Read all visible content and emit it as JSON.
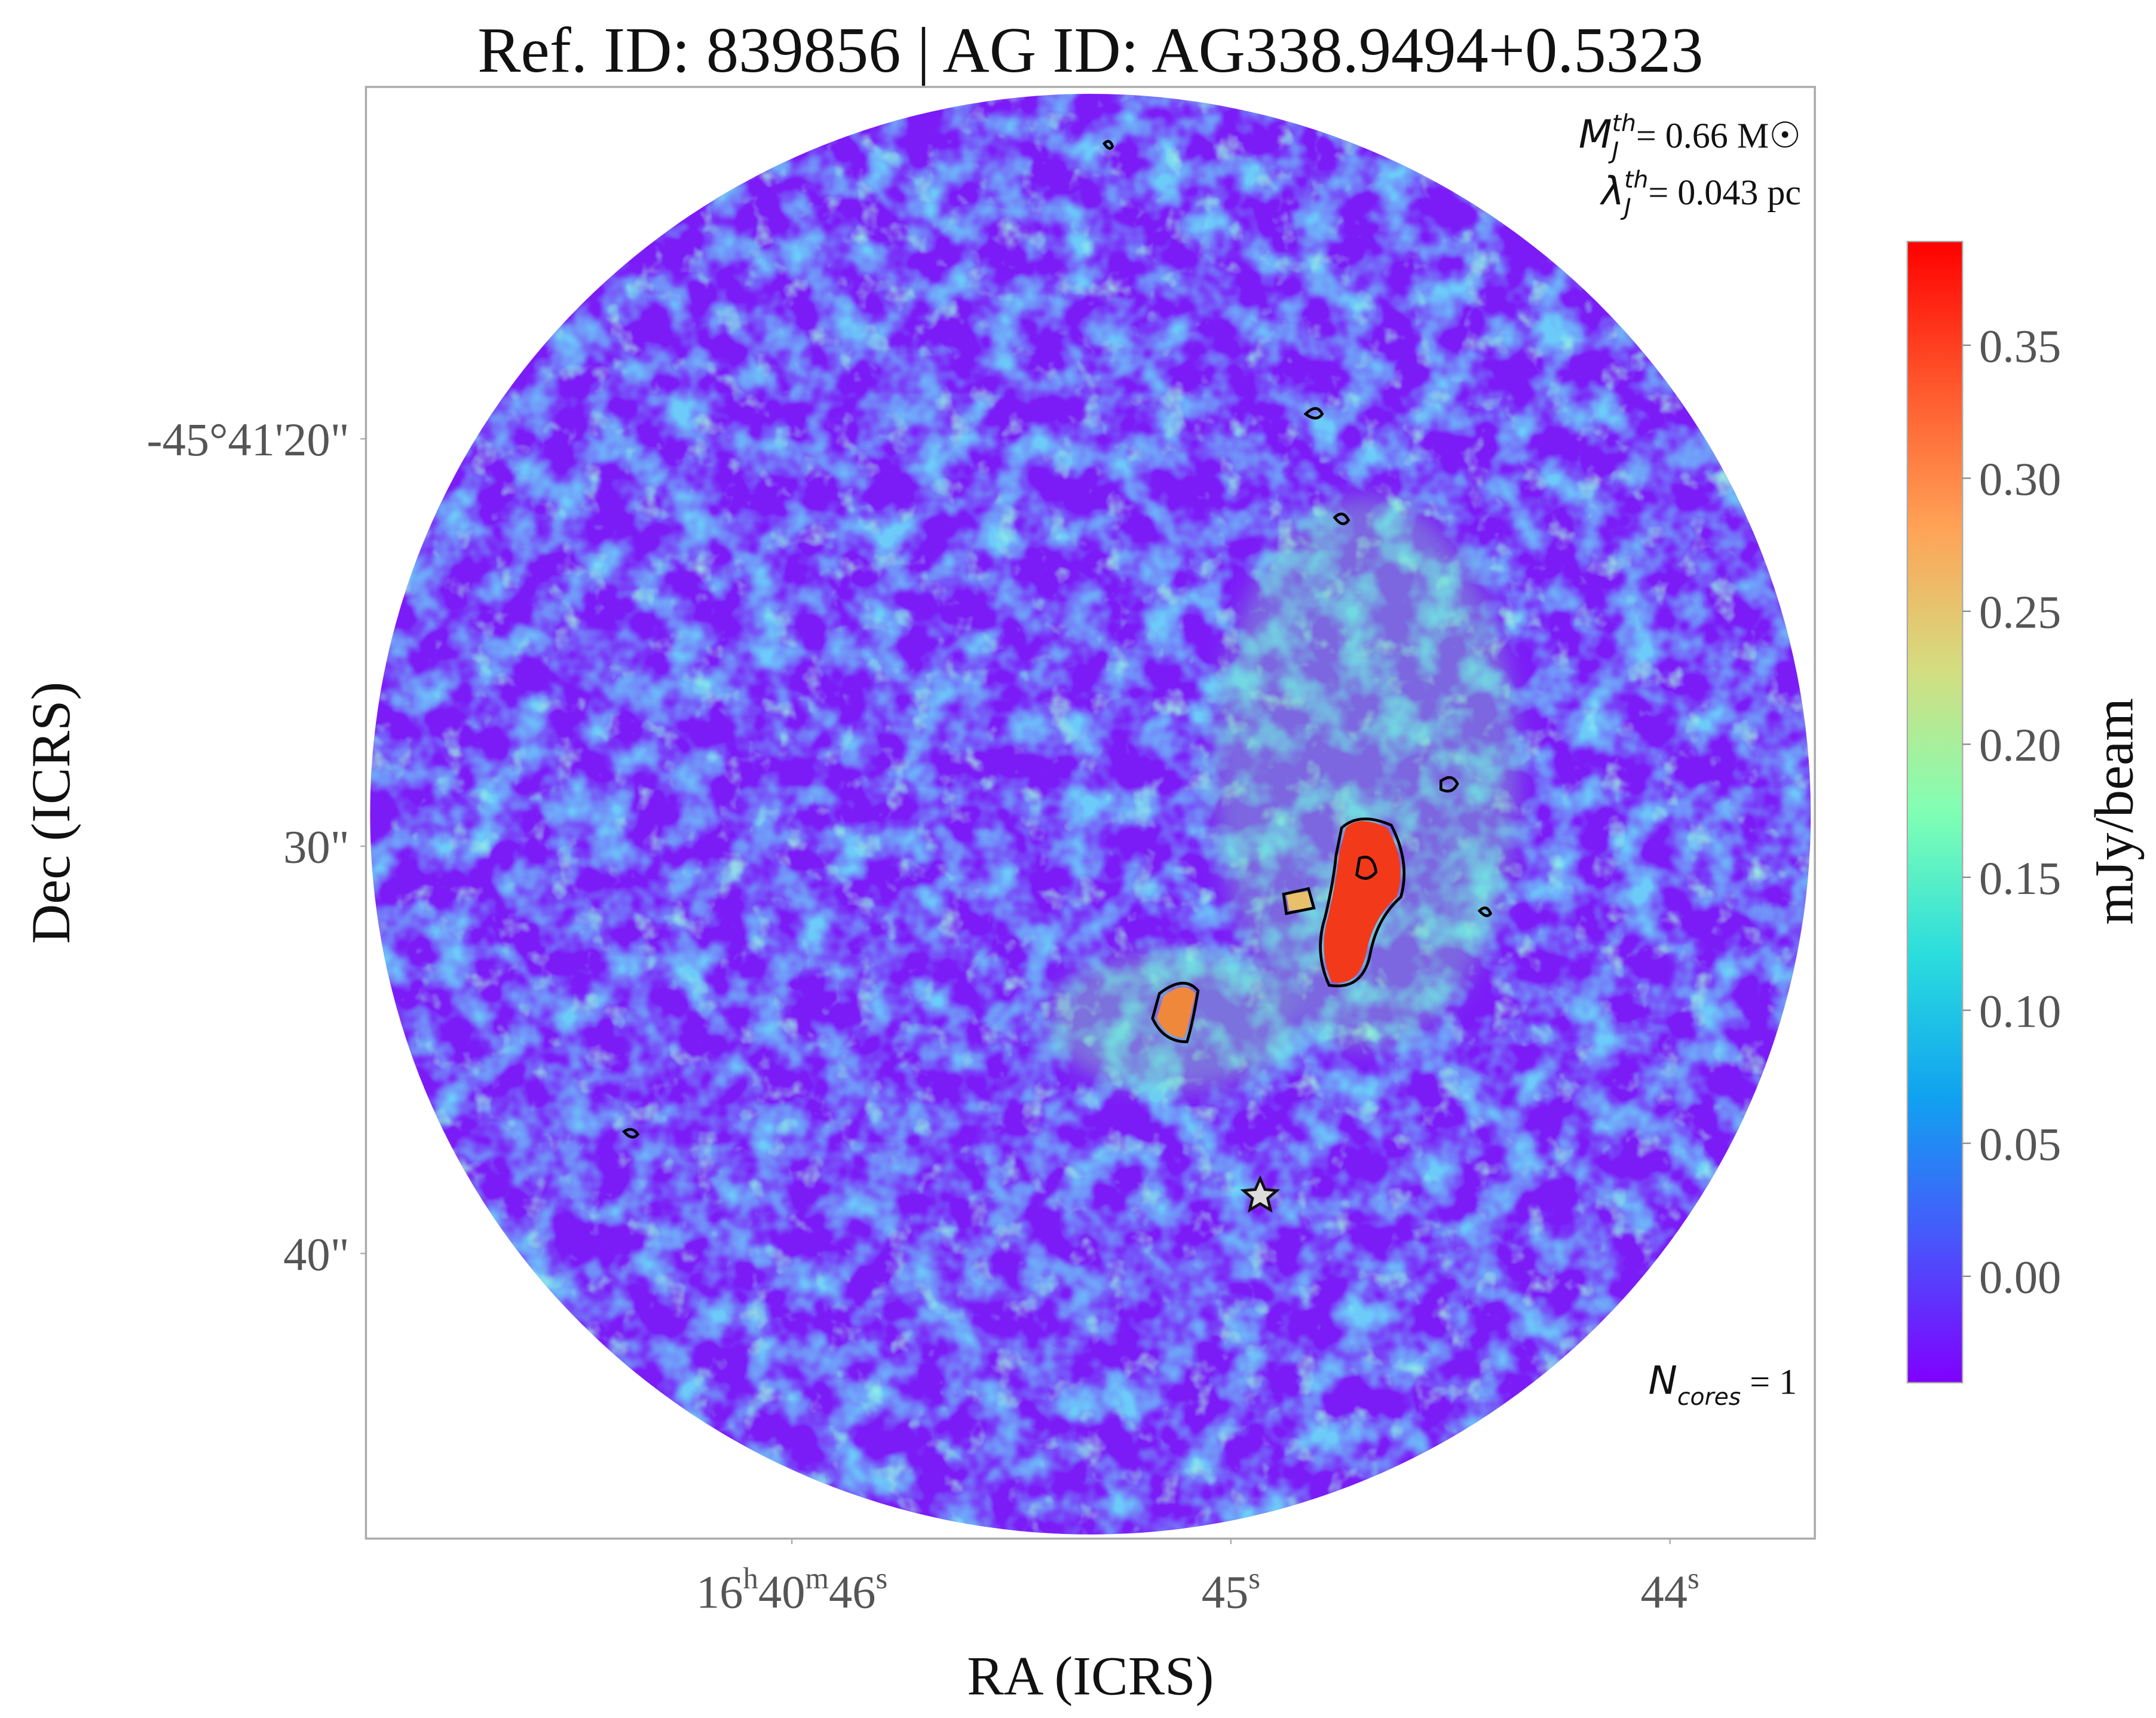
{
  "chart_data": {
    "type": "image",
    "title": "Ref. ID: 839856 | AG ID: AG338.9494+0.5323",
    "x_label": "RA (ICRS)",
    "y_label": "Dec (ICRS)",
    "xlim": [
      46.97,
      43.67
    ],
    "xticks": [
      {
        "value": 46,
        "label": "16h40m46s"
      },
      {
        "value": 45,
        "label": "45s"
      },
      {
        "value": 44,
        "label": "44s"
      }
    ],
    "ylim": [
      11.36,
      47.0
    ],
    "yticks": [
      {
        "value": 20,
        "label": "-45°41'20\""
      },
      {
        "value": 30,
        "label": "30\""
      },
      {
        "value": 40,
        "label": "40\""
      }
    ],
    "grid": false,
    "colorbar": {
      "label": "mJy/beam",
      "colormap": "rainbow",
      "lim": [
        -0.04,
        0.389
      ],
      "ticks": [
        {
          "value": 0,
          "label": "0.00"
        },
        {
          "value": 0.05,
          "label": "0.05"
        },
        {
          "value": 0.1,
          "label": "0.10"
        },
        {
          "value": 0.15,
          "label": "0.15"
        },
        {
          "value": 0.2,
          "label": "0.20"
        },
        {
          "value": 0.25,
          "label": "0.25"
        },
        {
          "value": 0.3,
          "label": "0.30"
        },
        {
          "value": 0.35,
          "label": "0.35"
        }
      ]
    },
    "annotations": [
      {
        "symbol": "M",
        "sub": "J",
        "sup": "th",
        "text": "= 0.66 M☉"
      },
      {
        "symbol": "λ",
        "sub": "J",
        "sup": "th",
        "text": "= 0.043 pc"
      },
      {
        "symbol": "N",
        "sub": "cores",
        "text": " = 1"
      }
    ]
  }
}
